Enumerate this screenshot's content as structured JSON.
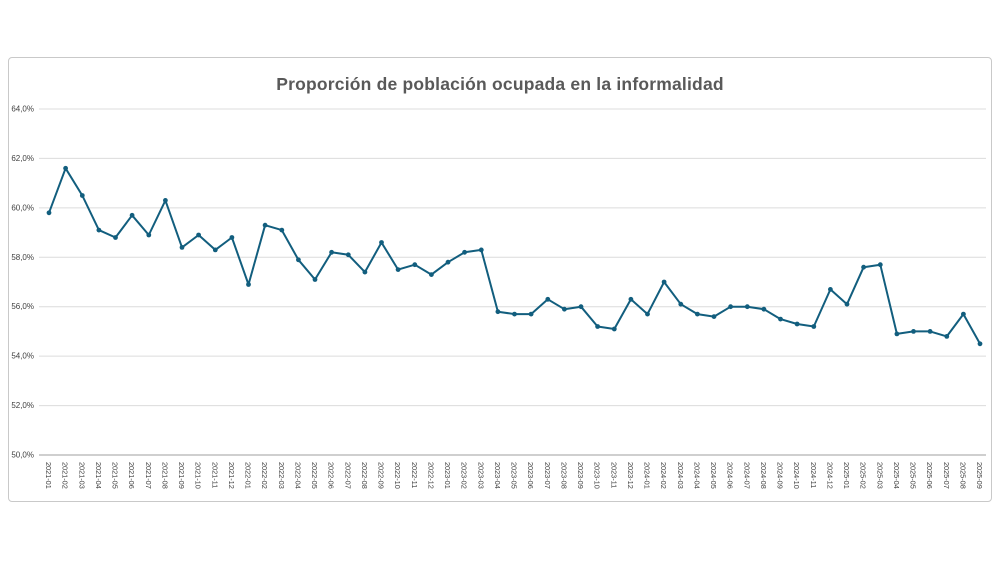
{
  "chart": {
    "title": "Proporción de población ocupada en la informalidad"
  },
  "chart_data": {
    "type": "line",
    "title": "Proporción de población ocupada en la informalidad",
    "x": [
      "2021-01",
      "2021-02",
      "2021-03",
      "2021-04",
      "2021-05",
      "2021-06",
      "2021-07",
      "2021-08",
      "2021-09",
      "2021-10",
      "2021-11",
      "2021-12",
      "2022-01",
      "2022-02",
      "2022-03",
      "2022-04",
      "2022-05",
      "2022-06",
      "2022-07",
      "2022-08",
      "2022-09",
      "2022-10",
      "2022-11",
      "2022-12",
      "2023-01",
      "2023-02",
      "2023-03",
      "2023-04",
      "2023-05",
      "2023-06",
      "2023-07",
      "2023-08",
      "2023-09",
      "2023-10",
      "2023-11",
      "2023-12",
      "2024-01",
      "2024-02",
      "2024-03",
      "2024-04",
      "2024-05",
      "2024-06",
      "2024-07",
      "2024-08",
      "2024-09",
      "2024-10",
      "2024-11",
      "2024-12",
      "2025-01",
      "2025-02",
      "2025-03",
      "2025-04",
      "2025-05",
      "2025-06",
      "2025-07",
      "2025-08",
      "2025-09"
    ],
    "values": [
      59.8,
      61.6,
      60.5,
      59.1,
      58.8,
      59.7,
      58.9,
      60.3,
      58.4,
      58.9,
      58.3,
      58.8,
      56.9,
      59.3,
      59.1,
      57.9,
      57.1,
      58.2,
      58.1,
      57.4,
      58.6,
      57.5,
      57.7,
      57.3,
      57.8,
      58.2,
      58.3,
      55.8,
      55.7,
      55.7,
      56.3,
      55.9,
      56.0,
      55.2,
      55.1,
      56.3,
      55.7,
      57.0,
      56.1,
      55.7,
      55.6,
      56.0,
      56.0,
      55.9,
      55.5,
      55.3,
      55.2,
      56.7,
      56.1,
      57.6,
      57.7,
      54.9,
      55.0,
      55.0,
      54.8,
      55.7,
      54.5
    ],
    "xlabel": "",
    "ylabel": "",
    "ylim": [
      50,
      64
    ],
    "ytick_step": 2,
    "ytick_labels": [
      "50,0%",
      "52,0%",
      "54,0%",
      "56,0%",
      "58,0%",
      "60,0%",
      "62,0%",
      "64,0%"
    ],
    "grid": true,
    "legend": "none",
    "colors": {
      "line": "#125e7e",
      "marker": "#125e7e",
      "gridline": "#dcdcdc",
      "axis_line": "#bfbfbf",
      "tick_text": "#404040",
      "title_text": "#595959",
      "panel_border": "#c9c9c9",
      "background": "#ffffff"
    }
  }
}
